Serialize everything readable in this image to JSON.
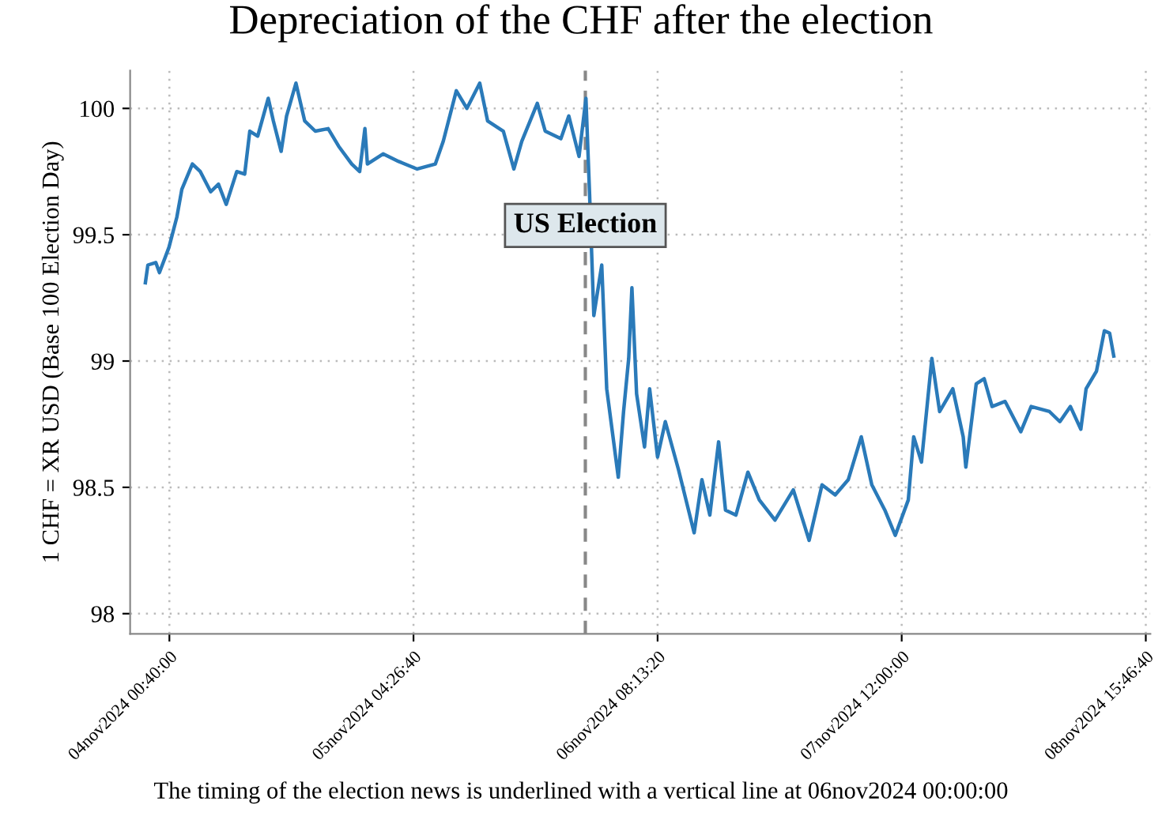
{
  "chart_data": {
    "type": "line",
    "title": "Depreciation of the CHF after the election",
    "ylabel": "1 CHF = XR USD (Base 100 Election Day)",
    "annotations": [
      "The timing of the election news is underlined with a vertical line at 06nov2024 00:00:00"
    ],
    "series": [
      {
        "color": "#2a7ab9",
        "x": [
          "2024-11-03T21:56",
          "2024-11-03T22:13",
          "2024-11-03T23:07",
          "2024-11-03T23:32",
          "2024-11-04T00:37",
          "2024-11-04T01:31",
          "2024-11-04T02:05",
          "2024-11-04T03:17",
          "2024-11-04T04:11",
          "2024-11-04T05:22",
          "2024-11-04T06:15",
          "2024-11-04T07:08",
          "2024-11-04T08:20",
          "2024-11-04T09:14",
          "2024-11-04T09:49",
          "2024-11-04T10:43",
          "2024-11-04T11:55",
          "2024-11-04T12:30",
          "2024-11-04T13:23",
          "2024-11-04T14:00",
          "2024-11-04T15:04",
          "2024-11-04T16:04",
          "2024-11-04T17:16",
          "2024-11-04T18:44",
          "2024-11-04T19:56",
          "2024-11-04T21:25",
          "2024-11-04T22:19",
          "2024-11-04T22:55",
          "2024-11-04T23:12",
          "2024-11-05T00:59",
          "2024-11-05T02:46",
          "2024-11-05T04:52",
          "2024-11-05T06:56",
          "2024-11-05T07:50",
          "2024-11-05T09:19",
          "2024-11-05T10:31",
          "2024-11-05T11:59",
          "2024-11-05T12:53",
          "2024-11-05T14:40",
          "2024-11-05T15:52",
          "2024-11-05T16:46",
          "2024-11-05T18:32",
          "2024-11-05T19:26",
          "2024-11-05T21:13",
          "2024-11-05T22:07",
          "2024-11-05T23:17",
          "2024-11-06T00:04",
          "2024-11-06T00:29",
          "2024-11-06T00:58",
          "2024-11-06T01:52",
          "2024-11-06T02:26",
          "2024-11-06T03:45",
          "2024-11-06T04:21",
          "2024-11-06T04:56",
          "2024-11-06T05:18",
          "2024-11-06T05:50",
          "2024-11-06T06:44",
          "2024-11-06T07:19",
          "2024-11-06T08:13",
          "2024-11-06T09:06",
          "2024-11-06T10:36",
          "2024-11-06T12:23",
          "2024-11-06T13:16",
          "2024-11-06T14:10",
          "2024-11-06T15:10",
          "2024-11-06T15:57",
          "2024-11-06T17:08",
          "2024-11-06T18:30",
          "2024-11-06T19:48",
          "2024-11-06T21:35",
          "2024-11-06T23:40",
          "2024-11-07T01:28",
          "2024-11-07T02:56",
          "2024-11-07T04:26",
          "2024-11-07T05:55",
          "2024-11-07T07:24",
          "2024-11-07T08:36",
          "2024-11-07T10:05",
          "2024-11-07T11:16",
          "2024-11-07T12:45",
          "2024-11-07T13:22",
          "2024-11-07T14:15",
          "2024-11-07T15:26",
          "2024-11-07T16:19",
          "2024-11-07T17:49",
          "2024-11-07T19:00",
          "2024-11-07T19:18",
          "2024-11-07T20:29",
          "2024-11-07T21:23",
          "2024-11-07T22:17",
          "2024-11-07T23:46",
          "2024-11-08T01:33",
          "2024-11-08T02:44",
          "2024-11-08T04:49",
          "2024-11-08T06:00",
          "2024-11-08T07:12",
          "2024-11-08T08:23",
          "2024-11-08T08:59",
          "2024-11-08T10:10",
          "2024-11-08T11:04",
          "2024-11-08T11:40",
          "2024-11-08T12:08"
        ],
        "values": [
          99.31,
          99.38,
          99.39,
          99.35,
          99.45,
          99.57,
          99.68,
          99.78,
          99.75,
          99.67,
          99.7,
          99.62,
          99.75,
          99.74,
          99.91,
          99.89,
          100.04,
          99.95,
          99.83,
          99.97,
          100.1,
          99.95,
          99.91,
          99.92,
          99.85,
          99.78,
          99.75,
          99.92,
          99.78,
          99.82,
          99.79,
          99.76,
          99.78,
          99.87,
          100.07,
          100.0,
          100.1,
          99.95,
          99.91,
          99.76,
          99.87,
          100.02,
          99.91,
          99.88,
          99.97,
          99.81,
          100.04,
          99.66,
          99.18,
          99.38,
          98.89,
          98.54,
          98.8,
          99.01,
          99.29,
          98.87,
          98.66,
          98.89,
          98.62,
          98.76,
          98.57,
          98.32,
          98.53,
          98.39,
          98.68,
          98.41,
          98.39,
          98.56,
          98.45,
          98.37,
          98.49,
          98.29,
          98.51,
          98.47,
          98.53,
          98.7,
          98.51,
          98.41,
          98.31,
          98.45,
          98.7,
          98.6,
          99.01,
          98.8,
          98.89,
          98.7,
          98.58,
          98.91,
          98.93,
          98.82,
          98.84,
          98.72,
          98.82,
          98.8,
          98.76,
          98.82,
          98.73,
          98.89,
          98.96,
          99.12,
          99.11,
          99.02
        ]
      }
    ],
    "xlim": [
      "2024-11-03T20:12",
      "2024-11-08T16:18"
    ],
    "xticks": [
      {
        "value": "2024-11-04T00:40",
        "label": "04nov2024 00:40:00"
      },
      {
        "value": "2024-11-05T04:26:40",
        "label": "05nov2024 04:26:40"
      },
      {
        "value": "2024-11-06T08:13:20",
        "label": "06nov2024 08:13:20"
      },
      {
        "value": "2024-11-07T12:00",
        "label": "07nov2024 12:00:00"
      },
      {
        "value": "2024-11-08T15:46:40",
        "label": "08nov2024 15:46:40"
      }
    ],
    "ylim": [
      97.92,
      100.15
    ],
    "yticks": [
      98,
      98.5,
      99,
      99.5,
      100
    ],
    "ref_lines": [
      {
        "axis": "x",
        "value": "2024-11-06T00:00",
        "label": "US Election",
        "color": "#888888",
        "line_style": "dashed"
      }
    ],
    "grid": true,
    "legend": false,
    "marker": "none",
    "line_style": "solid"
  }
}
